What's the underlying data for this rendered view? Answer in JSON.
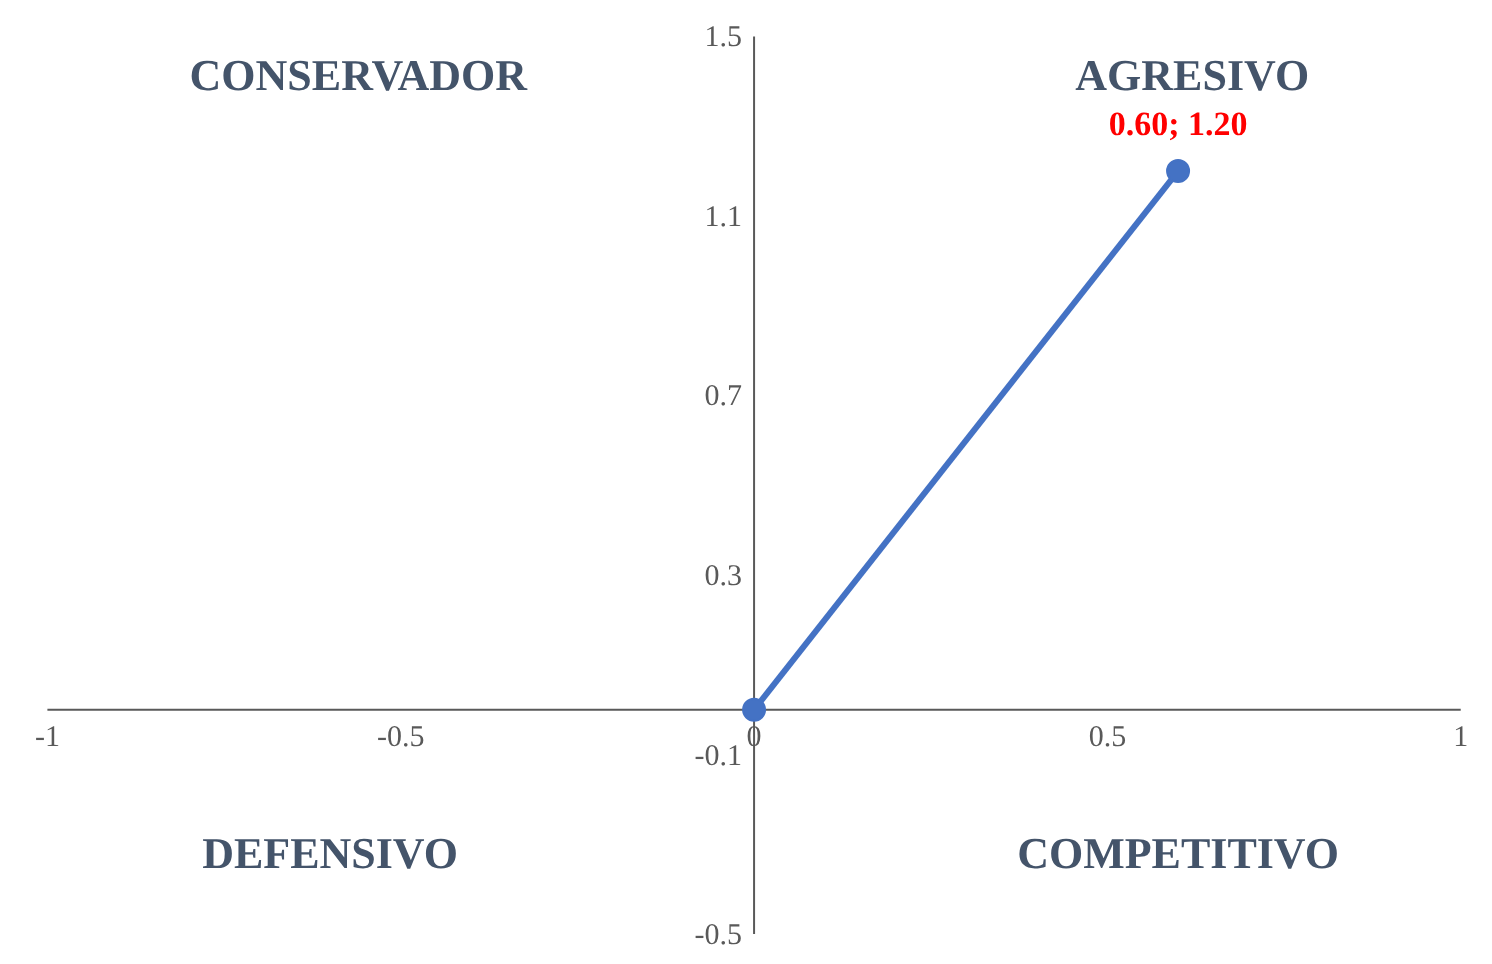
{
  "chart_data": {
    "type": "line",
    "x": [
      0,
      0.6
    ],
    "series": [
      {
        "color": "#4472c4",
        "values": [
          0,
          1.2
        ],
        "value_labels": [
          null,
          "0.60; 1.20"
        ]
      }
    ],
    "xlim": [
      -1,
      1
    ],
    "ylim": [
      -0.5,
      1.5
    ],
    "xticks": [
      -1,
      -0.5,
      0,
      0.5,
      1
    ],
    "yticks": [
      -0.5,
      -0.1,
      0.3,
      0.7,
      1.1,
      1.5
    ],
    "marker": "circle",
    "grid": false,
    "annotations": [
      "CONSERVADOR",
      "AGRESIVO",
      "DEFENSIVO",
      "COMPETITIVO"
    ]
  }
}
